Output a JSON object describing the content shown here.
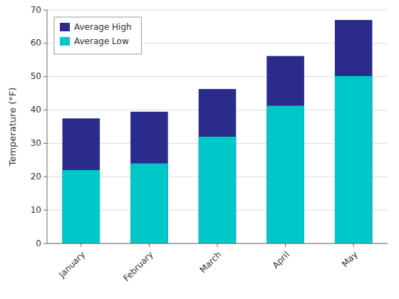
{
  "chart_data": {
    "type": "bar",
    "categories": [
      "January",
      "February",
      "March",
      "April",
      "May"
    ],
    "series": [
      {
        "name": "Average High",
        "color": "#2B2B8B",
        "values": [
          37.5,
          39.5,
          46.3,
          56.2,
          67.0
        ]
      },
      {
        "name": "Average Low",
        "color": "#00C8C8",
        "values": [
          22.0,
          24.0,
          32.0,
          41.3,
          50.2
        ]
      }
    ],
    "y_label": "Temperature  (°F)",
    "ylim": [
      0,
      70
    ],
    "yticks": [
      0,
      10,
      20,
      30,
      40,
      50,
      60,
      70
    ],
    "grid": true,
    "legend": "upper-left"
  }
}
